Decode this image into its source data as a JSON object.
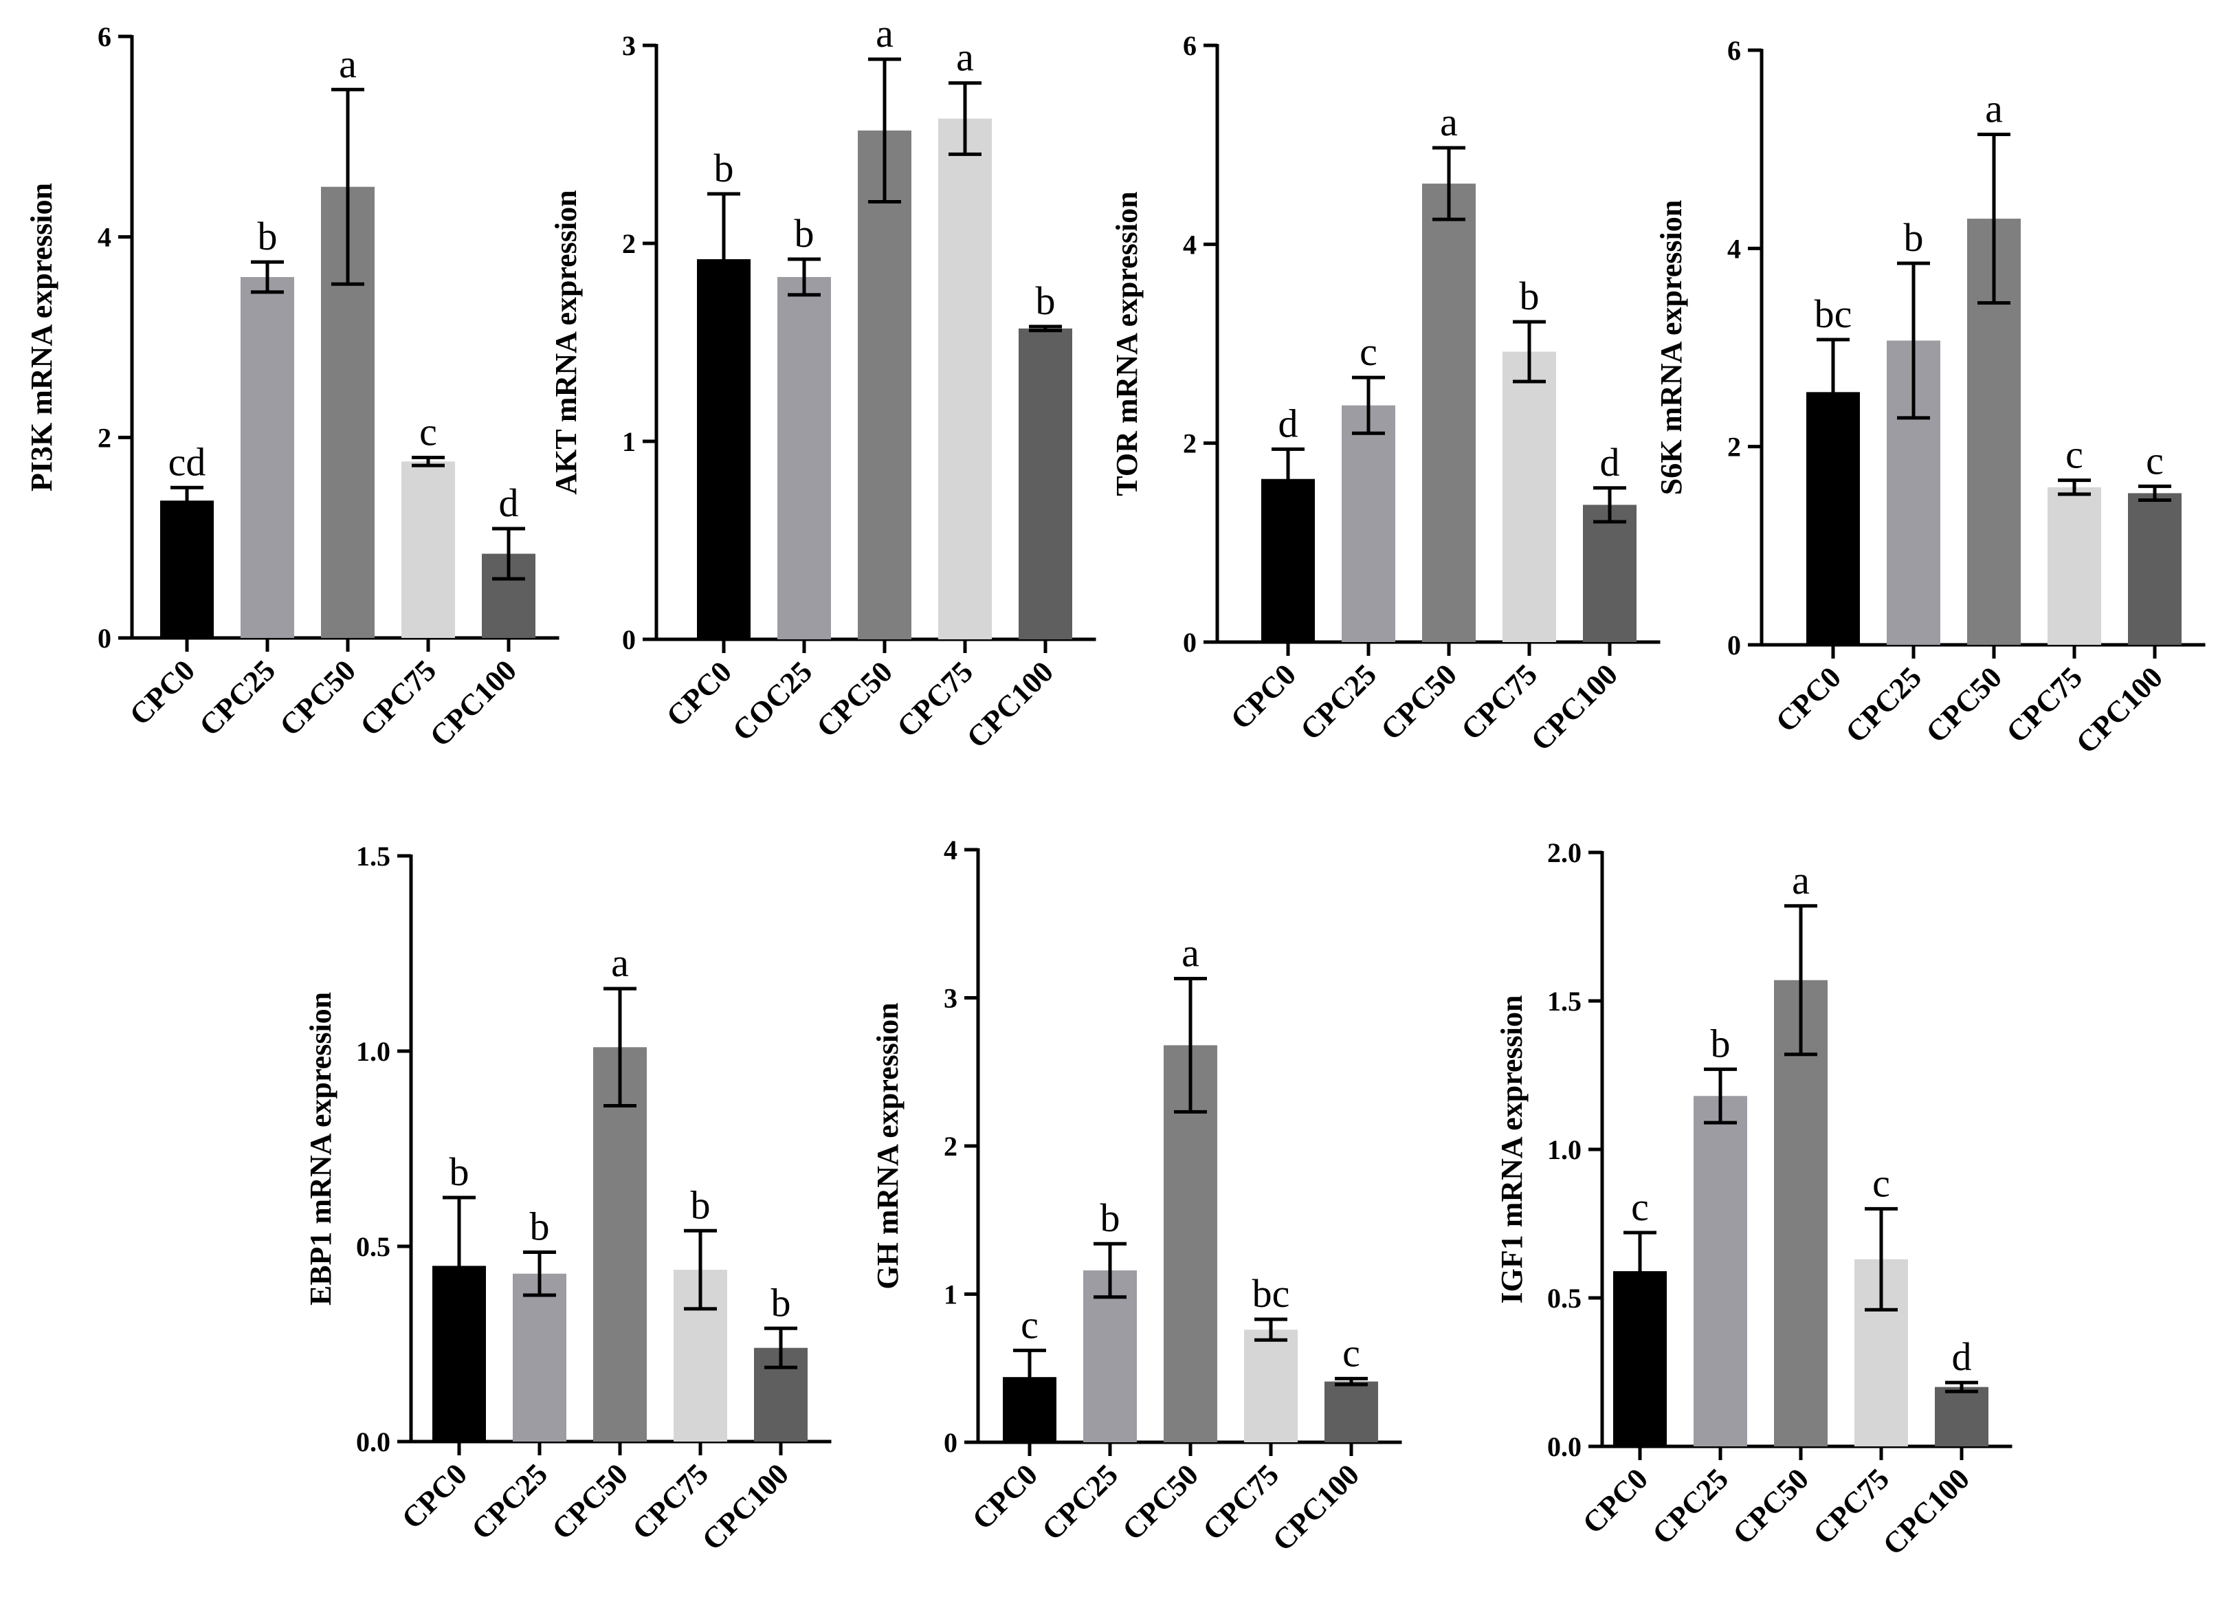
{
  "figure": {
    "bar_colors": [
      "#000000",
      "#9d9ca3",
      "#7f7f7f",
      "#d6d6d6",
      "#5f5f5f"
    ]
  },
  "chart_data": [
    {
      "type": "bar",
      "ylabel": "PI3K mRNA expression",
      "ylim": [
        0,
        6
      ],
      "yticks": [
        "0",
        "2",
        "4",
        "6"
      ],
      "categories": [
        "CPC0",
        "CPC25",
        "CPC50",
        "CPC75",
        "CPC100"
      ],
      "values": [
        1.37,
        3.6,
        4.5,
        1.76,
        0.84
      ],
      "errors": [
        0.13,
        0.15,
        0.97,
        0.04,
        0.25
      ],
      "significance": [
        "cd",
        "b",
        "a",
        "c",
        "d"
      ]
    },
    {
      "type": "bar",
      "ylabel": "AKT mRNA expression",
      "ylim": [
        0,
        3
      ],
      "yticks": [
        "0",
        "1",
        "2",
        "3"
      ],
      "categories": [
        "CPC0",
        "COC25",
        "CPC50",
        "CPC75",
        "CPC100"
      ],
      "values": [
        1.92,
        1.83,
        2.57,
        2.63,
        1.57
      ],
      "errors": [
        0.33,
        0.09,
        0.36,
        0.18,
        0.01
      ],
      "significance": [
        "b",
        "b",
        "a",
        "a",
        "b"
      ]
    },
    {
      "type": "bar",
      "ylabel": "TOR mRNA expression",
      "ylim": [
        0,
        6
      ],
      "yticks": [
        "0",
        "2",
        "4",
        "6"
      ],
      "categories": [
        "CPC0",
        "CPC25",
        "CPC50",
        "CPC75",
        "CPC100"
      ],
      "values": [
        1.64,
        2.38,
        4.61,
        2.92,
        1.38
      ],
      "errors": [
        0.3,
        0.28,
        0.36,
        0.3,
        0.17
      ],
      "significance": [
        "d",
        "c",
        "a",
        "b",
        "d"
      ]
    },
    {
      "type": "bar",
      "ylabel": "S6K mRNA expression",
      "ylim": [
        0,
        6
      ],
      "yticks": [
        "0",
        "2",
        "4",
        "6"
      ],
      "categories": [
        "CPC0",
        "CPC25",
        "CPC50",
        "CPC75",
        "CPC100"
      ],
      "values": [
        2.55,
        3.07,
        4.3,
        1.59,
        1.53
      ],
      "errors": [
        0.53,
        0.78,
        0.85,
        0.07,
        0.07
      ],
      "significance": [
        "bc",
        "b",
        "a",
        "c",
        "c"
      ]
    },
    {
      "type": "bar",
      "ylabel": "EBP1 mRNA expression",
      "ylim": [
        0,
        1.5
      ],
      "yticks": [
        "0.0",
        "0.5",
        "1.0",
        "1.5"
      ],
      "categories": [
        "CPC0",
        "CPC25",
        "CPC50",
        "CPC75",
        "CPC100"
      ],
      "values": [
        0.45,
        0.43,
        1.01,
        0.44,
        0.24
      ],
      "errors": [
        0.175,
        0.055,
        0.15,
        0.1,
        0.05
      ],
      "significance": [
        "b",
        "b",
        "a",
        "b",
        "b"
      ]
    },
    {
      "type": "bar",
      "ylabel": "GH mRNA expression",
      "ylim": [
        0,
        4
      ],
      "yticks": [
        "0",
        "1",
        "2",
        "3",
        "4"
      ],
      "categories": [
        "CPC0",
        "CPC25",
        "CPC50",
        "CPC75",
        "CPC100"
      ],
      "values": [
        0.44,
        1.16,
        2.68,
        0.76,
        0.41
      ],
      "errors": [
        0.18,
        0.18,
        0.45,
        0.07,
        0.02
      ],
      "significance": [
        "c",
        "b",
        "a",
        "bc",
        "c"
      ]
    },
    {
      "type": "bar",
      "ylabel": "IGF1 mRNA expression",
      "ylim": [
        0,
        2.0
      ],
      "yticks": [
        "0.0",
        "0.5",
        "1.0",
        "1.5",
        "2.0"
      ],
      "categories": [
        "CPC0",
        "CPC25",
        "CPC50",
        "CPC75",
        "CPC100"
      ],
      "values": [
        0.59,
        1.18,
        1.57,
        0.63,
        0.2
      ],
      "errors": [
        0.13,
        0.09,
        0.25,
        0.17,
        0.015
      ],
      "significance": [
        "c",
        "b",
        "a",
        "c",
        "d"
      ]
    }
  ]
}
